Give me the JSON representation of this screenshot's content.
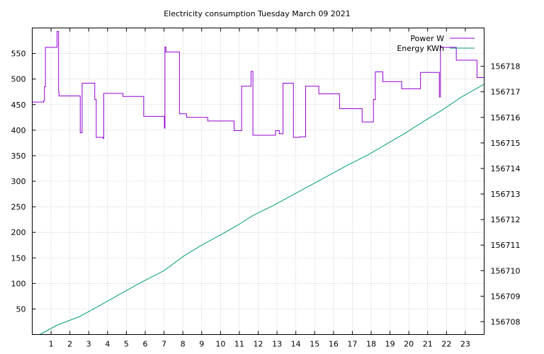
{
  "chart_data": {
    "type": "line",
    "title": "Electricity consumption Tuesday March 09 2021",
    "xlabel": "",
    "ylabel": "",
    "y2label": "",
    "xlim": [
      0,
      24
    ],
    "ylim": [
      0,
      600
    ],
    "y2lim": [
      156707.5,
      156719.5
    ],
    "grid": true,
    "legend_position": "top-right",
    "x_ticks": [
      1,
      2,
      3,
      4,
      5,
      6,
      7,
      8,
      9,
      10,
      11,
      12,
      13,
      14,
      15,
      16,
      17,
      18,
      19,
      20,
      21,
      22,
      23
    ],
    "y_ticks": [
      50,
      100,
      150,
      200,
      250,
      300,
      350,
      400,
      450,
      500,
      550
    ],
    "y2_ticks": [
      156708,
      156709,
      156710,
      156711,
      156712,
      156713,
      156714,
      156715,
      156716,
      156717,
      156718
    ],
    "series": [
      {
        "name": "Power W",
        "axis": "y",
        "color": "#9400d3",
        "x": [
          0,
          0.6,
          0.65,
          0.7,
          1.3,
          1.32,
          1.4,
          1.42,
          2.5,
          2.55,
          2.6,
          2.65,
          3.3,
          3.32,
          3.4,
          3.7,
          3.75,
          3.8,
          4.8,
          4.82,
          5.9,
          5.92,
          7.0,
          7.02,
          7.05,
          7.1,
          7.2,
          7.8,
          7.82,
          8.0,
          8.2,
          9.3,
          9.32,
          10.7,
          10.72,
          11.1,
          11.12,
          11.6,
          11.62,
          11.7,
          11.72,
          12.9,
          12.92,
          13.1,
          13.12,
          13.3,
          13.32,
          13.85,
          13.87,
          14.2,
          14.5,
          14.52,
          15.2,
          15.22,
          16.3,
          16.32,
          17.5,
          17.52,
          18.1,
          18.12,
          18.2,
          18.22,
          18.6,
          18.62,
          19.6,
          19.62,
          20.6,
          20.62,
          21.6,
          21.62,
          21.68,
          21.7,
          22.5,
          22.52,
          23.6,
          23.62,
          24.0
        ],
        "values": [
          455,
          457,
          485,
          562,
          562,
          593,
          475,
          467,
          467,
          395,
          395,
          492,
          492,
          460,
          386,
          386,
          384,
          472,
          472,
          466,
          466,
          427,
          427,
          404,
          563,
          553,
          553,
          553,
          432,
          432,
          425,
          425,
          418,
          418,
          399,
          399,
          486,
          486,
          515,
          515,
          390,
          390,
          399,
          399,
          393,
          393,
          492,
          492,
          386,
          387,
          387,
          486,
          486,
          471,
          471,
          442,
          442,
          416,
          416,
          460,
          460,
          514,
          514,
          495,
          495,
          481,
          481,
          513,
          513,
          465,
          565,
          562,
          562,
          537,
          537,
          503,
          503
        ]
      },
      {
        "name": "Energy KWh",
        "axis": "y2",
        "color": "#009e73",
        "x": [
          0.4,
          1.3,
          2.5,
          3.5,
          4.7,
          5.8,
          7.0,
          8.0,
          9.0,
          10.0,
          11.0,
          11.7,
          12.8,
          13.8,
          14.8,
          15.8,
          16.8,
          17.8,
          18.8,
          19.8,
          20.8,
          21.8,
          22.8,
          24.0
        ],
        "values": [
          156707.5,
          156707.86,
          156708.2,
          156708.6,
          156709.1,
          156709.55,
          156710.0,
          156710.55,
          156711.0,
          156711.4,
          156711.82,
          156712.15,
          156712.55,
          156712.95,
          156713.35,
          156713.75,
          156714.15,
          156714.52,
          156714.95,
          156715.38,
          156715.85,
          156716.3,
          156716.8,
          156717.3
        ]
      }
    ]
  }
}
